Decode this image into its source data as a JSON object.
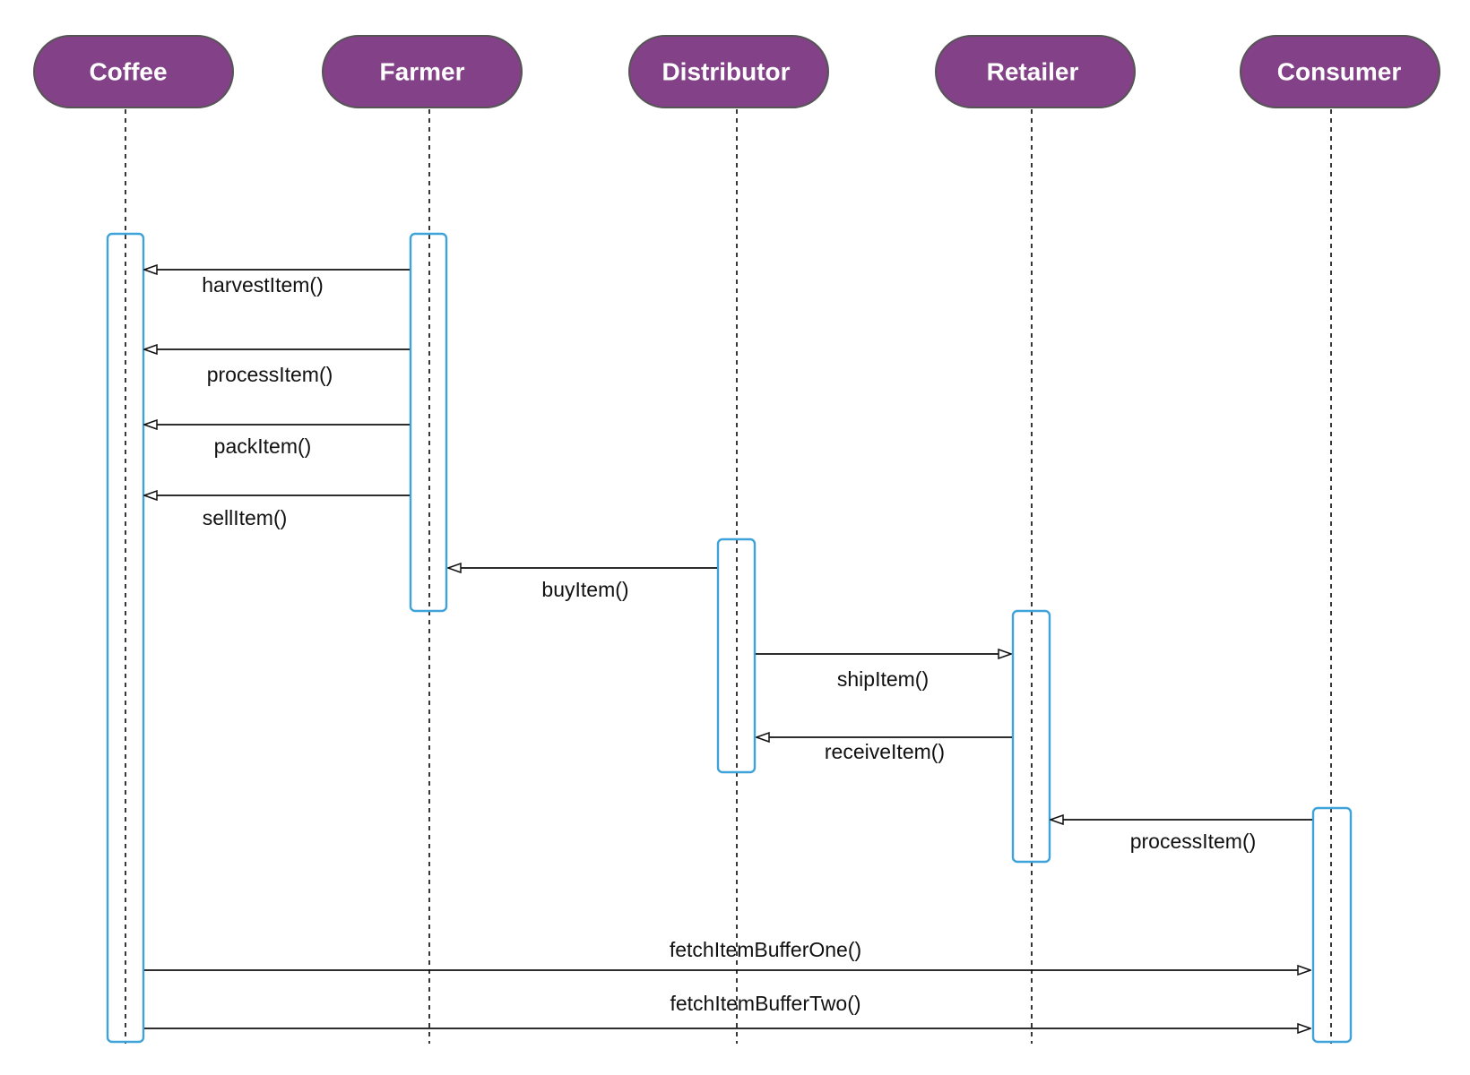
{
  "diagram": {
    "type": "sequence",
    "colors": {
      "actor_fill": "#834187",
      "actor_stroke": "#555555",
      "actor_text": "#ffffff",
      "activation_stroke": "#3fa3d9",
      "lifeline": "#222222",
      "message": "#111111"
    },
    "actors": [
      {
        "id": "coffee",
        "label": "Coffee"
      },
      {
        "id": "farmer",
        "label": "Farmer"
      },
      {
        "id": "distributor",
        "label": "Distributor"
      },
      {
        "id": "retailer",
        "label": "Retailer"
      },
      {
        "id": "consumer",
        "label": "Consumer"
      }
    ],
    "messages": [
      {
        "label": "harvestItem()",
        "from": "farmer",
        "to": "coffee"
      },
      {
        "label": "processItem()",
        "from": "farmer",
        "to": "coffee"
      },
      {
        "label": "packItem()",
        "from": "farmer",
        "to": "coffee"
      },
      {
        "label": "sellItem()",
        "from": "farmer",
        "to": "coffee"
      },
      {
        "label": "buyItem()",
        "from": "distributor",
        "to": "farmer"
      },
      {
        "label": "shipItem()",
        "from": "distributor",
        "to": "retailer"
      },
      {
        "label": "receiveItem()",
        "from": "retailer",
        "to": "distributor"
      },
      {
        "label": "processItem()",
        "from": "consumer",
        "to": "retailer"
      },
      {
        "label": "fetchItemBufferOne()",
        "from": "coffee",
        "to": "consumer"
      },
      {
        "label": "fetchItemBufferTwo()",
        "from": "coffee",
        "to": "consumer"
      }
    ]
  }
}
